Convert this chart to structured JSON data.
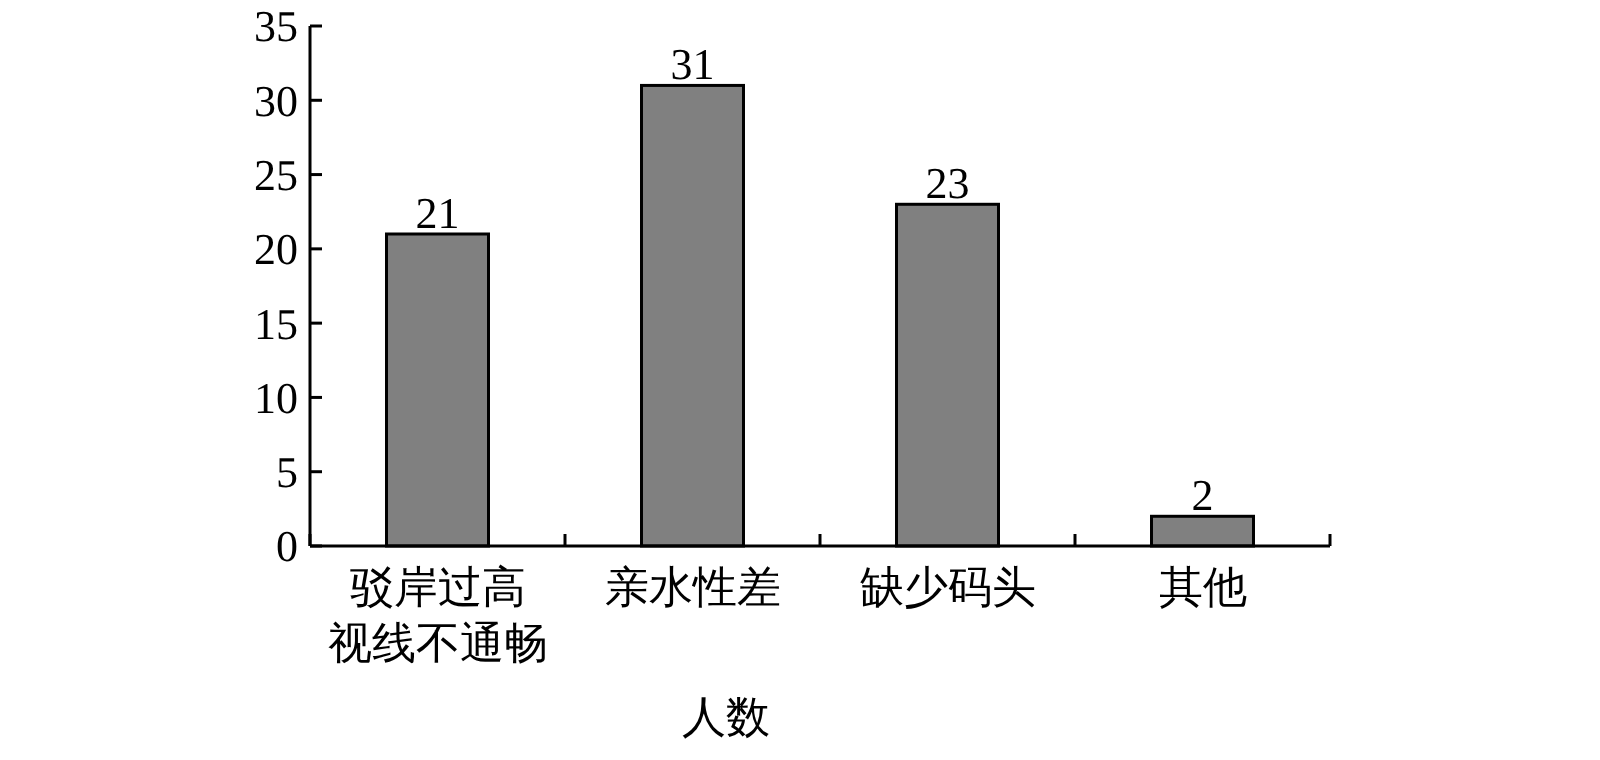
{
  "chart_data": {
    "type": "bar",
    "categories": [
      "驳岸过高视线不通畅",
      "亲水性差",
      "缺少码头",
      "其他"
    ],
    "values": [
      21,
      31,
      23,
      2
    ],
    "color": "#808080",
    "xlabel": "人数",
    "ylim": [
      0,
      35
    ],
    "yticks": [
      0,
      5,
      10,
      15,
      20,
      25,
      30,
      35
    ],
    "data_labels": true,
    "grid": false
  }
}
